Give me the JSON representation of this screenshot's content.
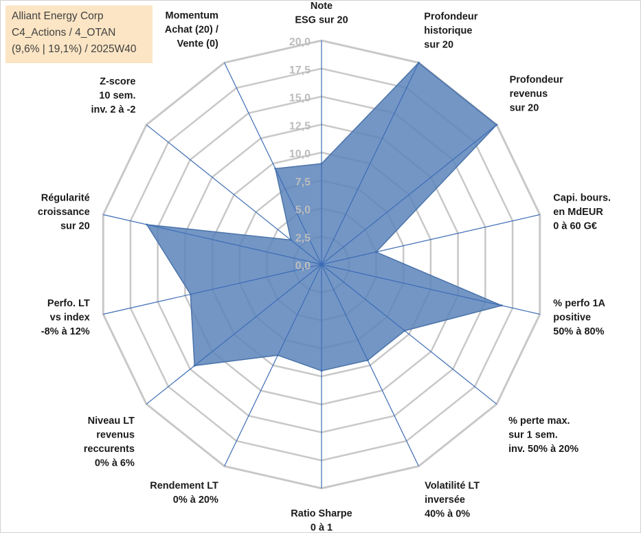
{
  "info_box": {
    "line1": "Alliant Energy Corp",
    "line2": "C4_Actions / 4_OTAN",
    "line3": "(9,6% | 19,1%) / 2025W40"
  },
  "colors": {
    "series_fill": "#5b84bb",
    "series_stroke": "#4a73a8",
    "grid": "#c8c8c8",
    "spoke": "#3d6cb5",
    "info_box_bg": "#fbe5c4"
  },
  "chart_data": {
    "type": "radar",
    "title": "",
    "rmin": 0,
    "rmax": 20,
    "tick_step": 2.5,
    "tick_labels": [
      "0,0",
      "2,5",
      "5,0",
      "7,5",
      "10,0",
      "12,5",
      "15,0",
      "17,5",
      "20,0"
    ],
    "axes": [
      {
        "label": [
          "Note",
          "ESG sur 20"
        ],
        "value": 9.0
      },
      {
        "label": [
          "Profondeur",
          "historique",
          "sur 20"
        ],
        "value": 20.0
      },
      {
        "label": [
          "Profondeur",
          "revenus",
          "sur 20"
        ],
        "value": 20.0
      },
      {
        "label": [
          "Capi. bours.",
          "en MdEUR",
          "0 à 60 G€"
        ],
        "value": 5.0
      },
      {
        "label": [
          "% perfo 1A",
          "positive",
          "50% à 80%"
        ],
        "value": 16.5
      },
      {
        "label": [
          "% perte max.",
          "sur 1 sem.",
          "inv. 50% à 20%"
        ],
        "value": 9.5
      },
      {
        "label": [
          "Volatilité LT",
          "inversée",
          "40% à 0%"
        ],
        "value": 9.5
      },
      {
        "label": [
          "Ratio Sharpe",
          "0 à 1"
        ],
        "value": 9.5
      },
      {
        "label": [
          "Rendement LT",
          "0% à 20%"
        ],
        "value": 9.0
      },
      {
        "label": [
          "Niveau LT",
          "revenus",
          "reccurents",
          "0% à 6%"
        ],
        "value": 14.5
      },
      {
        "label": [
          "Perfo. LT",
          "vs index",
          "-8% à 12%"
        ],
        "value": 12.0
      },
      {
        "label": [
          "Régularité",
          "croissance",
          "sur 20"
        ],
        "value": 16.0
      },
      {
        "label": [
          "Z-score",
          "10 sem.",
          "inv. 2 à -2"
        ],
        "value": 3.5
      },
      {
        "label": [
          "Momentum",
          "Achat (20) /",
          "Vente (0)"
        ],
        "value": 9.5
      }
    ]
  }
}
